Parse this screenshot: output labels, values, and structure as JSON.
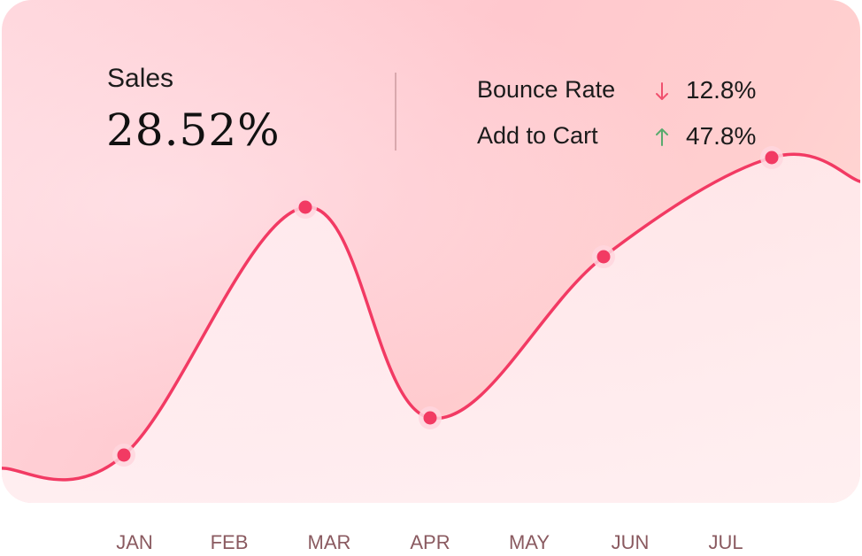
{
  "summary": {
    "sales_label": "Sales",
    "sales_value": "28.52%"
  },
  "metrics": [
    {
      "label": "Bounce Rate",
      "value": "12.8%",
      "direction": "down",
      "icon": "arrow-down-icon",
      "color": "#f0506e"
    },
    {
      "label": "Add to Cart",
      "value": "47.8%",
      "direction": "up",
      "icon": "arrow-up-icon",
      "color": "#5aaa6e"
    }
  ],
  "colors": {
    "line": "#f23a63",
    "marker": "#f23a63",
    "marker_halo": "#ffd6de",
    "month_label": "#8a5a60"
  },
  "chart_data": {
    "type": "line",
    "categories": [
      "JAN",
      "FEB",
      "MAR",
      "APR",
      "MAY",
      "JUN",
      "JUL"
    ],
    "series": [
      {
        "points": [
          {
            "x": "JAN",
            "y": 8
          },
          {
            "x": "MAR",
            "y": 48
          },
          {
            "x": "APR",
            "y": 14
          },
          {
            "x": "JUN",
            "y": 40
          },
          {
            "x": "JUL",
            "y": 56
          }
        ]
      }
    ],
    "title": "",
    "xlabel": "",
    "ylabel": "",
    "ylim": [
      0,
      70
    ],
    "grid": false,
    "legend": "none"
  }
}
